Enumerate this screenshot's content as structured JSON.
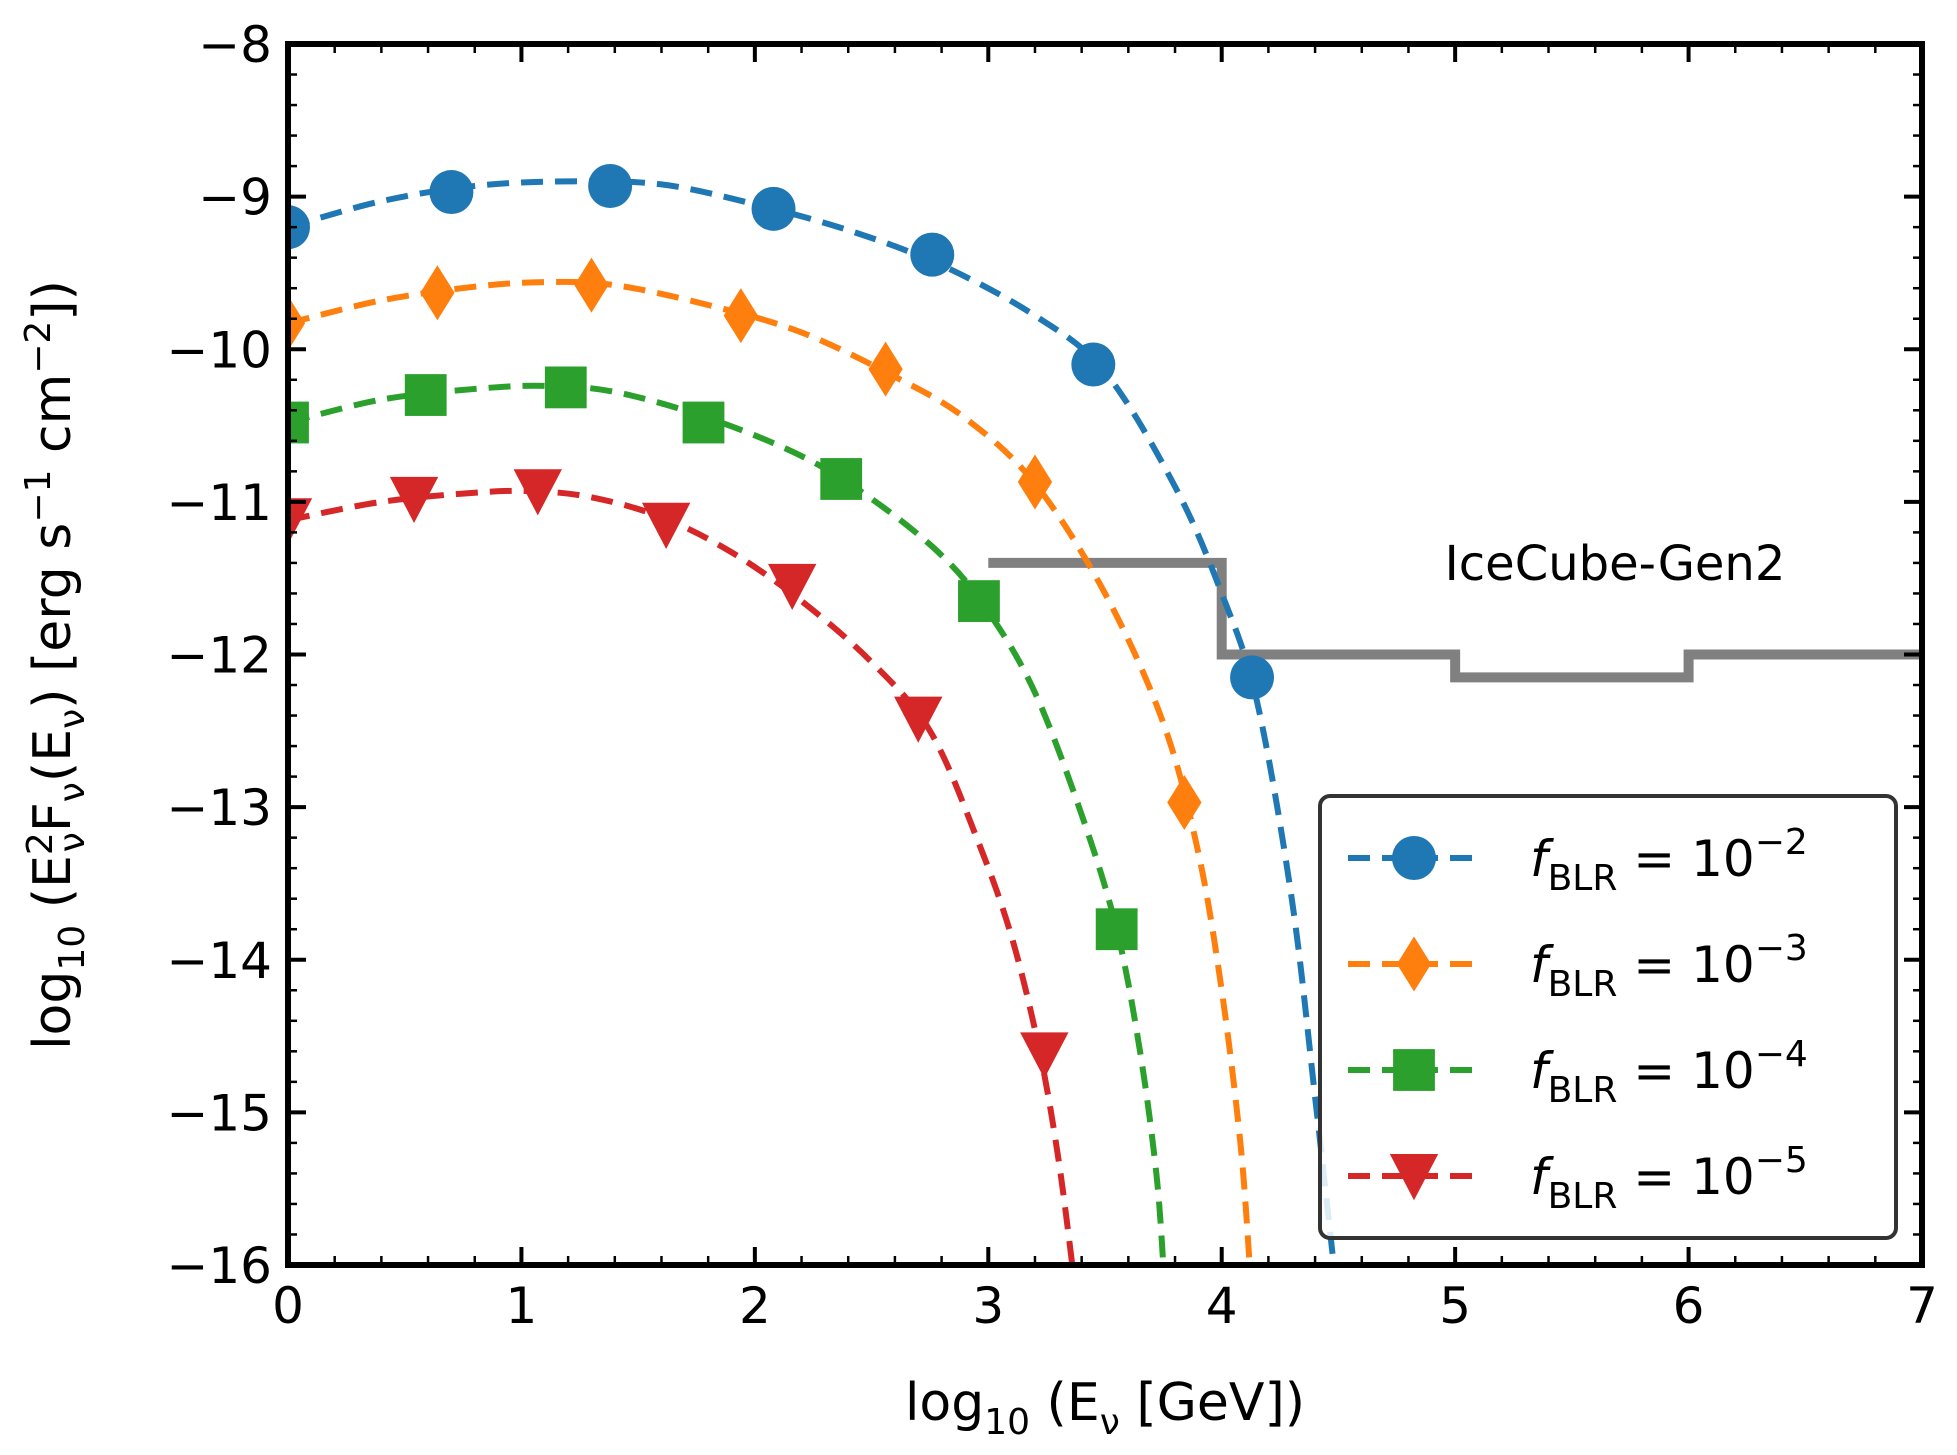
{
  "chart_data": {
    "type": "line",
    "title": "",
    "xlabel": "log10 (Eν [GeV])",
    "ylabel": "log10 (E²νFν(Eν) [erg s⁻¹ cm⁻²])",
    "xlim": [
      0,
      7
    ],
    "ylim": [
      -16,
      -8
    ],
    "xticks": [
      0,
      1,
      2,
      3,
      4,
      5,
      6,
      7
    ],
    "xtick_labels": [
      "0",
      "1",
      "2",
      "3",
      "4",
      "5",
      "6",
      "7"
    ],
    "yticks": [
      -8,
      -9,
      -10,
      -11,
      -12,
      -13,
      -14,
      -15,
      -16
    ],
    "ytick_labels": [
      "−8",
      "−9",
      "−10",
      "−11",
      "−12",
      "−13",
      "−14",
      "−15",
      "−16"
    ],
    "legend_position": "lower-right",
    "series": [
      {
        "name": "f_BLR = 10^-2",
        "label_main": "f",
        "label_sub": "BLR",
        "label_eq": " = 10",
        "label_exp": "−2",
        "color": "#1f77b4",
        "marker": "circle",
        "curve_x": [
          0,
          0.4,
          0.8,
          1.2,
          1.6,
          2.0,
          2.4,
          2.8,
          3.2,
          3.5,
          3.8,
          4.0,
          4.15,
          4.3,
          4.4,
          4.48
        ],
        "curve_y": [
          -9.2,
          -9.03,
          -8.93,
          -8.9,
          -8.92,
          -9.05,
          -9.22,
          -9.45,
          -9.78,
          -10.15,
          -10.9,
          -11.6,
          -12.3,
          -13.6,
          -14.9,
          -16.0
        ],
        "marker_x": [
          0.0,
          0.7,
          1.38,
          2.08,
          2.76,
          3.45,
          4.13
        ],
        "marker_y": [
          -9.2,
          -8.97,
          -8.93,
          -9.08,
          -9.38,
          -10.1,
          -12.15
        ]
      },
      {
        "name": "f_BLR = 10^-3",
        "label_main": "f",
        "label_sub": "BLR",
        "label_eq": " = 10",
        "label_exp": "−3",
        "color": "#ff7f0e",
        "marker": "diamond",
        "curve_x": [
          0,
          0.4,
          0.8,
          1.1,
          1.4,
          1.8,
          2.2,
          2.6,
          2.9,
          3.2,
          3.5,
          3.75,
          3.9,
          4.0,
          4.08,
          4.12
        ],
        "curve_y": [
          -9.83,
          -9.68,
          -9.59,
          -9.56,
          -9.58,
          -9.71,
          -9.89,
          -10.18,
          -10.45,
          -10.88,
          -11.6,
          -12.45,
          -13.3,
          -14.2,
          -15.2,
          -16.0
        ],
        "marker_x": [
          0.0,
          0.64,
          1.3,
          1.94,
          2.56,
          3.2,
          3.84
        ],
        "marker_y": [
          -9.83,
          -9.63,
          -9.58,
          -9.78,
          -10.13,
          -10.87,
          -12.97
        ]
      },
      {
        "name": "f_BLR = 10^-4",
        "label_main": "f",
        "label_sub": "BLR",
        "label_eq": " = 10",
        "label_exp": "−4",
        "color": "#2ca02c",
        "marker": "square",
        "curve_x": [
          0,
          0.4,
          0.8,
          1.1,
          1.4,
          1.8,
          2.2,
          2.5,
          2.8,
          3.0,
          3.2,
          3.4,
          3.55,
          3.65,
          3.72,
          3.75
        ],
        "curve_y": [
          -10.48,
          -10.33,
          -10.26,
          -10.24,
          -10.28,
          -10.45,
          -10.7,
          -10.98,
          -11.35,
          -11.72,
          -12.25,
          -13.05,
          -13.8,
          -14.6,
          -15.4,
          -16.0
        ],
        "marker_x": [
          0.0,
          0.59,
          1.19,
          1.78,
          2.37,
          2.96,
          3.55
        ],
        "marker_y": [
          -10.48,
          -10.3,
          -10.25,
          -10.48,
          -10.85,
          -11.65,
          -13.8
        ]
      },
      {
        "name": "f_BLR = 10^-5",
        "label_main": "f",
        "label_sub": "BLR",
        "label_eq": " = 10",
        "label_exp": "−5",
        "color": "#d62728",
        "marker": "triangle-down",
        "curve_x": [
          0,
          0.4,
          0.8,
          1.05,
          1.3,
          1.6,
          1.9,
          2.2,
          2.5,
          2.75,
          2.95,
          3.1,
          3.22,
          3.3,
          3.36
        ],
        "curve_y": [
          -11.12,
          -11.0,
          -10.94,
          -10.93,
          -10.97,
          -11.1,
          -11.33,
          -11.65,
          -12.05,
          -12.5,
          -13.2,
          -13.85,
          -14.6,
          -15.3,
          -16.0
        ],
        "marker_x": [
          0.0,
          0.54,
          1.07,
          1.62,
          2.16,
          2.7,
          3.24
        ],
        "marker_y": [
          -11.12,
          -10.98,
          -10.93,
          -11.15,
          -11.55,
          -12.42,
          -14.62
        ]
      }
    ],
    "reference_curve": {
      "name": "IceCube-Gen2",
      "color": "#808080",
      "x": [
        3.0,
        4.0,
        4.0,
        5.0,
        5.0,
        6.0,
        6.0,
        7.0
      ],
      "y": [
        -11.4,
        -11.4,
        -12.0,
        -12.0,
        -12.15,
        -12.15,
        -12.0,
        -12.0
      ]
    },
    "annotation": "IceCube-Gen2"
  }
}
